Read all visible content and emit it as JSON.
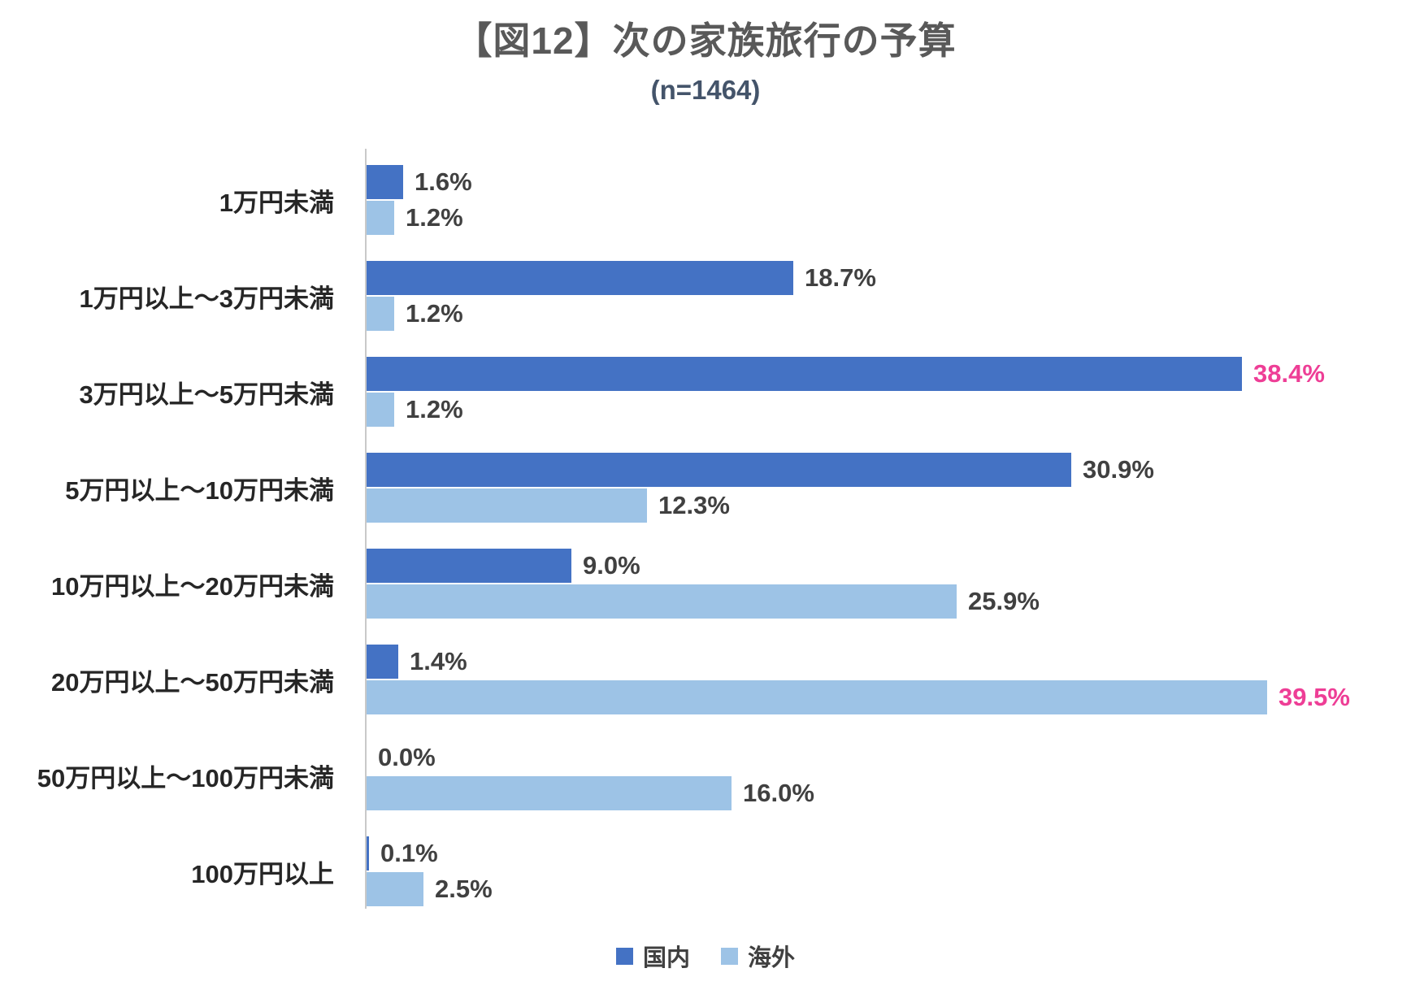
{
  "chart_data": {
    "type": "bar",
    "orientation": "horizontal",
    "title": "【図12】次の家族旅行の予算",
    "subtitle": "(n=1464)",
    "categories": [
      "1万円未満",
      "1万円以上～3万円未満",
      "3万円以上～5万円未満",
      "5万円以上～10万円未満",
      "10万円以上～20万円未満",
      "20万円以上～50万円未満",
      "50万円以上～100万円未満",
      "100万円以上"
    ],
    "series": [
      {
        "name": "国内",
        "color": "#4472C4",
        "values": [
          1.6,
          18.7,
          38.4,
          30.9,
          9.0,
          1.4,
          0.0,
          0.1
        ],
        "labels": [
          "1.6%",
          "18.7%",
          "38.4%",
          "30.9%",
          "9.0%",
          "1.4%",
          "0.0%",
          "0.1%"
        ]
      },
      {
        "name": "海外",
        "color": "#9DC3E6",
        "values": [
          1.2,
          1.2,
          1.2,
          12.3,
          25.9,
          39.5,
          16.0,
          2.5
        ],
        "labels": [
          "1.2%",
          "1.2%",
          "1.2%",
          "12.3%",
          "25.9%",
          "39.5%",
          "16.0%",
          "2.5%"
        ]
      }
    ],
    "highlights": [
      {
        "series": 0,
        "index": 2
      },
      {
        "series": 1,
        "index": 5
      }
    ],
    "highlight_color": "#EE3E96",
    "label_color": "#404040",
    "xlim": [
      0,
      40
    ],
    "grid": false,
    "legend_position": "bottom"
  }
}
